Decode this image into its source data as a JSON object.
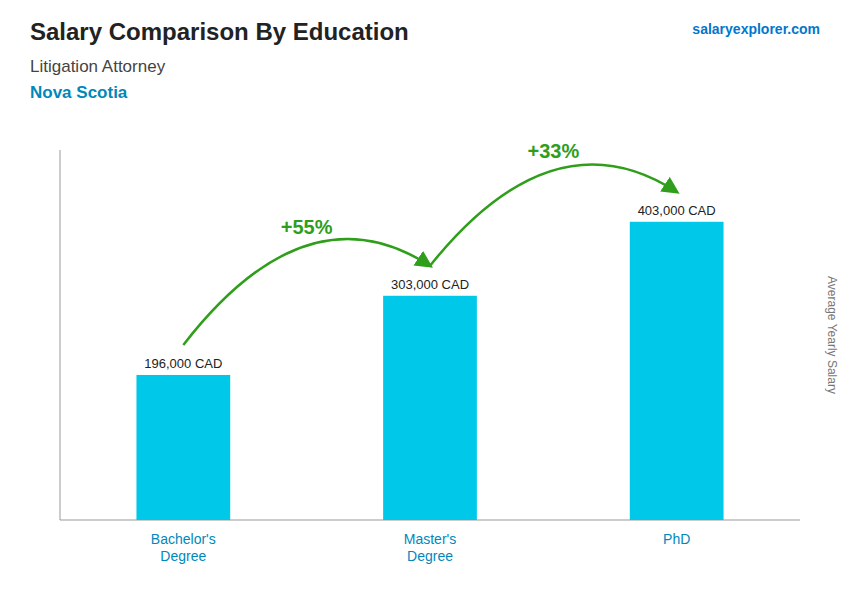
{
  "chart_data": {
    "type": "bar",
    "title": "Salary Comparison By Education",
    "subtitle": [
      "Litigation Attorney",
      "Nova Scotia"
    ],
    "credit": "salaryexplorer.com",
    "categories": [
      "Bachelor's\nDegree",
      "Master's\nDegree",
      "PhD"
    ],
    "values": [
      196000,
      303000,
      403000
    ],
    "value_labels": [
      "196,000 CAD",
      "303,000 CAD",
      "403,000 CAD"
    ],
    "data_labels": true,
    "annotations": [
      "+55%",
      "+33%"
    ],
    "color": "#00c8e8",
    "ylabel": "Average Yearly Salary",
    "ylim": [
      0,
      500000
    ],
    "tick_labels": "x",
    "grid": false
  }
}
